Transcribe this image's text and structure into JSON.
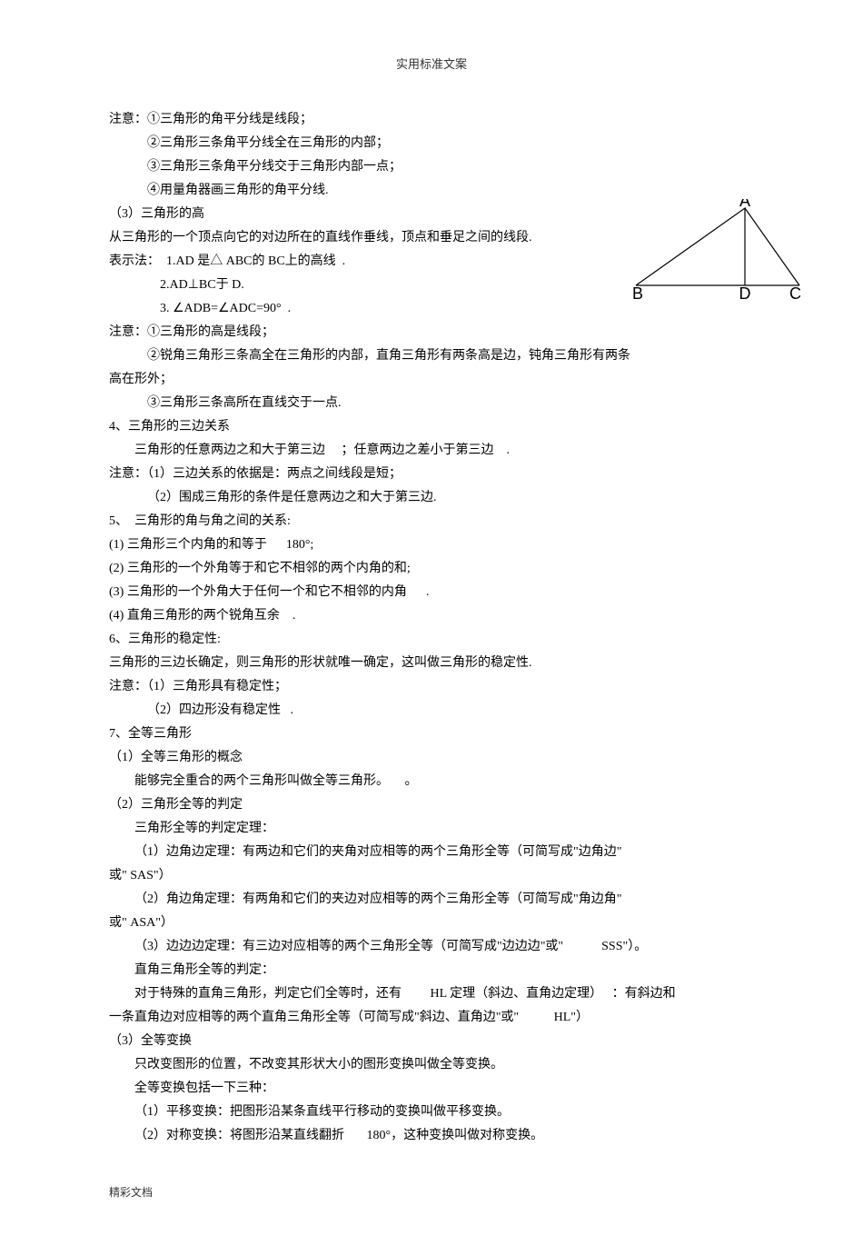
{
  "header": "实用标准文案",
  "footer": "精彩文档",
  "diagram": {
    "labels": {
      "A": "A",
      "B": "B",
      "C": "C",
      "D": "D"
    },
    "stroke": "#000000",
    "stroke_width": 1.2,
    "label_fontsize": 18
  },
  "lines": [
    {
      "t": "注意：①三角形的角平分线是线段；",
      "cls": ""
    },
    {
      "t": "②三角形三条角平分线全在三角形的内部；",
      "cls": "indent1"
    },
    {
      "t": "③三角形三条角平分线交于三角形内部一点；",
      "cls": "indent1"
    },
    {
      "t": "④用量角器画三角形的角平分线.",
      "cls": "indent1"
    },
    {
      "t": "（3）三角形的高",
      "cls": ""
    },
    {
      "t": "从三角形的一个顶点向它的对边所在的直线作垂线，顶点和垂足之间的线段.",
      "cls": ""
    },
    {
      "t": "表示法：  1.AD 是△ ABC的 BC上的高线  .",
      "cls": ""
    },
    {
      "t": "2.AD⊥BC于 D.",
      "cls": "indent3"
    },
    {
      "t": "3. ∠ADB=∠ADC=90°  .",
      "cls": "indent3"
    },
    {
      "t": "注意：①三角形的高是线段；",
      "cls": ""
    },
    {
      "t": "②锐角三角形三条高全在三角形的内部，直角三角形有两条高是边，钝角三角形有两条",
      "cls": "indent1"
    },
    {
      "t": "高在形外；",
      "cls": ""
    },
    {
      "t": "③三角形三条高所在直线交于一点.",
      "cls": "indent1"
    },
    {
      "t": "4、三角形的三边关系",
      "cls": ""
    },
    {
      "t": "三角形的任意两边之和大于第三边     ；任意两边之差小于第三边    .",
      "cls": "indent2"
    },
    {
      "t": "注意：（1）三边关系的依据是：两点之间线段是短；",
      "cls": ""
    },
    {
      "t": "（2）围成三角形的条件是任意两边之和大于第三边.",
      "cls": "indent1"
    },
    {
      "t": "5、  三角形的角与角之间的关系:",
      "cls": ""
    },
    {
      "t": "(1) 三角形三个内角的和等于      180°;",
      "cls": ""
    },
    {
      "t": "(2) 三角形的一个外角等于和它不相邻的两个内角的和;",
      "cls": ""
    },
    {
      "t": "(3) 三角形的一个外角大于任何一个和它不相邻的内角      .",
      "cls": ""
    },
    {
      "t": "(4) 直角三角形的两个锐角互余    .",
      "cls": ""
    },
    {
      "t": "6、三角形的稳定性:",
      "cls": ""
    },
    {
      "t": "三角形的三边长确定，则三角形的形状就唯一确定，这叫做三角形的稳定性.",
      "cls": ""
    },
    {
      "t": "注意：（1）三角形具有稳定性；",
      "cls": ""
    },
    {
      "t": "（2）四边形没有稳定性   .",
      "cls": "indent1"
    },
    {
      "t": "7、全等三角形",
      "cls": ""
    },
    {
      "t": "（1）全等三角形的概念",
      "cls": ""
    },
    {
      "t": "能够完全重合的两个三角形叫做全等三角形。     。",
      "cls": "indent2"
    },
    {
      "t": "（2）三角形全等的判定",
      "cls": ""
    },
    {
      "t": "三角形全等的判定定理：",
      "cls": "indent2"
    },
    {
      "t": "（1）边角边定理：有两边和它们的夹角对应相等的两个三角形全等（可简写成\"边角边\"",
      "cls": "indent2"
    },
    {
      "t": "或\" SAS\"）",
      "cls": ""
    },
    {
      "t": "（2）角边角定理：有两角和它们的夹边对应相等的两个三角形全等（可简写成\"角边角\"",
      "cls": "indent2"
    },
    {
      "t": "或\" ASA\"）",
      "cls": ""
    },
    {
      "t": "（3）边边边定理：有三边对应相等的两个三角形全等（可简写成\"边边边\"或\"            SSS\"）。",
      "cls": "indent2"
    },
    {
      "t": "直角三角形全等的判定：",
      "cls": "indent2"
    },
    {
      "t": "对于特殊的直角三角形，判定它们全等时，还有         HL 定理（斜边、直角边定理）   ：有斜边和",
      "cls": "indent2"
    },
    {
      "t": "一条直角边对应相等的两个直角三角形全等（可简写成\"斜边、直角边\"或\"           HL\"）",
      "cls": ""
    },
    {
      "t": "（3）全等变换",
      "cls": ""
    },
    {
      "t": "只改变图形的位置，不改变其形状大小的图形变换叫做全等变换。",
      "cls": "indent2"
    },
    {
      "t": "全等变换包括一下三种：",
      "cls": "indent2"
    },
    {
      "t": "（1）平移变换：把图形沿某条直线平行移动的变换叫做平移变换。",
      "cls": "indent2"
    },
    {
      "t": "（2）对称变换：将图形沿某直线翻折       180°，这种变换叫做对称变换。",
      "cls": "indent2"
    }
  ]
}
